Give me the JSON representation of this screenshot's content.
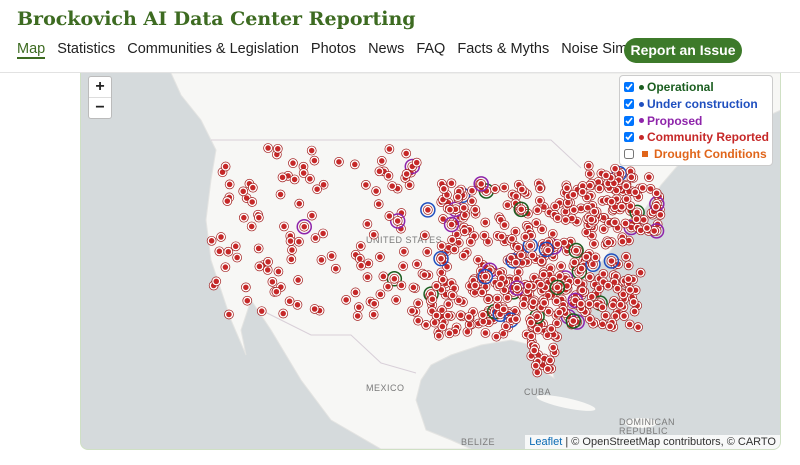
{
  "header": {
    "title": "Brockovich AI Data Center Reporting",
    "nav": [
      "Map",
      "Statistics",
      "Communities & Legislation",
      "Photos",
      "News",
      "FAQ",
      "Facts & Myths",
      "Noise Simulation"
    ],
    "button": "Report an Issue"
  },
  "map": {
    "zoom": [
      "+",
      "−"
    ],
    "legend": [
      {
        "label": "Operational",
        "checked": true,
        "color": "#1b5e20"
      },
      {
        "label": "Under construction",
        "checked": true,
        "color": "#1f4fbf"
      },
      {
        "label": "Proposed",
        "checked": true,
        "color": "#8e24aa"
      },
      {
        "label": "Community Reported",
        "checked": true,
        "color": "#c62828"
      },
      {
        "label": "Drought Conditions",
        "checked": false,
        "color": "#e0651a"
      }
    ],
    "labels": [
      "UNITED STATES",
      "MEXICO",
      "CUBA",
      "DOMINICAN",
      "REPUBLIC",
      "BELIZE"
    ],
    "attribution": {
      "link": "Leaflet",
      "separator": "|",
      "text": "© OpenStreetMap contributors, © CARTO"
    }
  }
}
